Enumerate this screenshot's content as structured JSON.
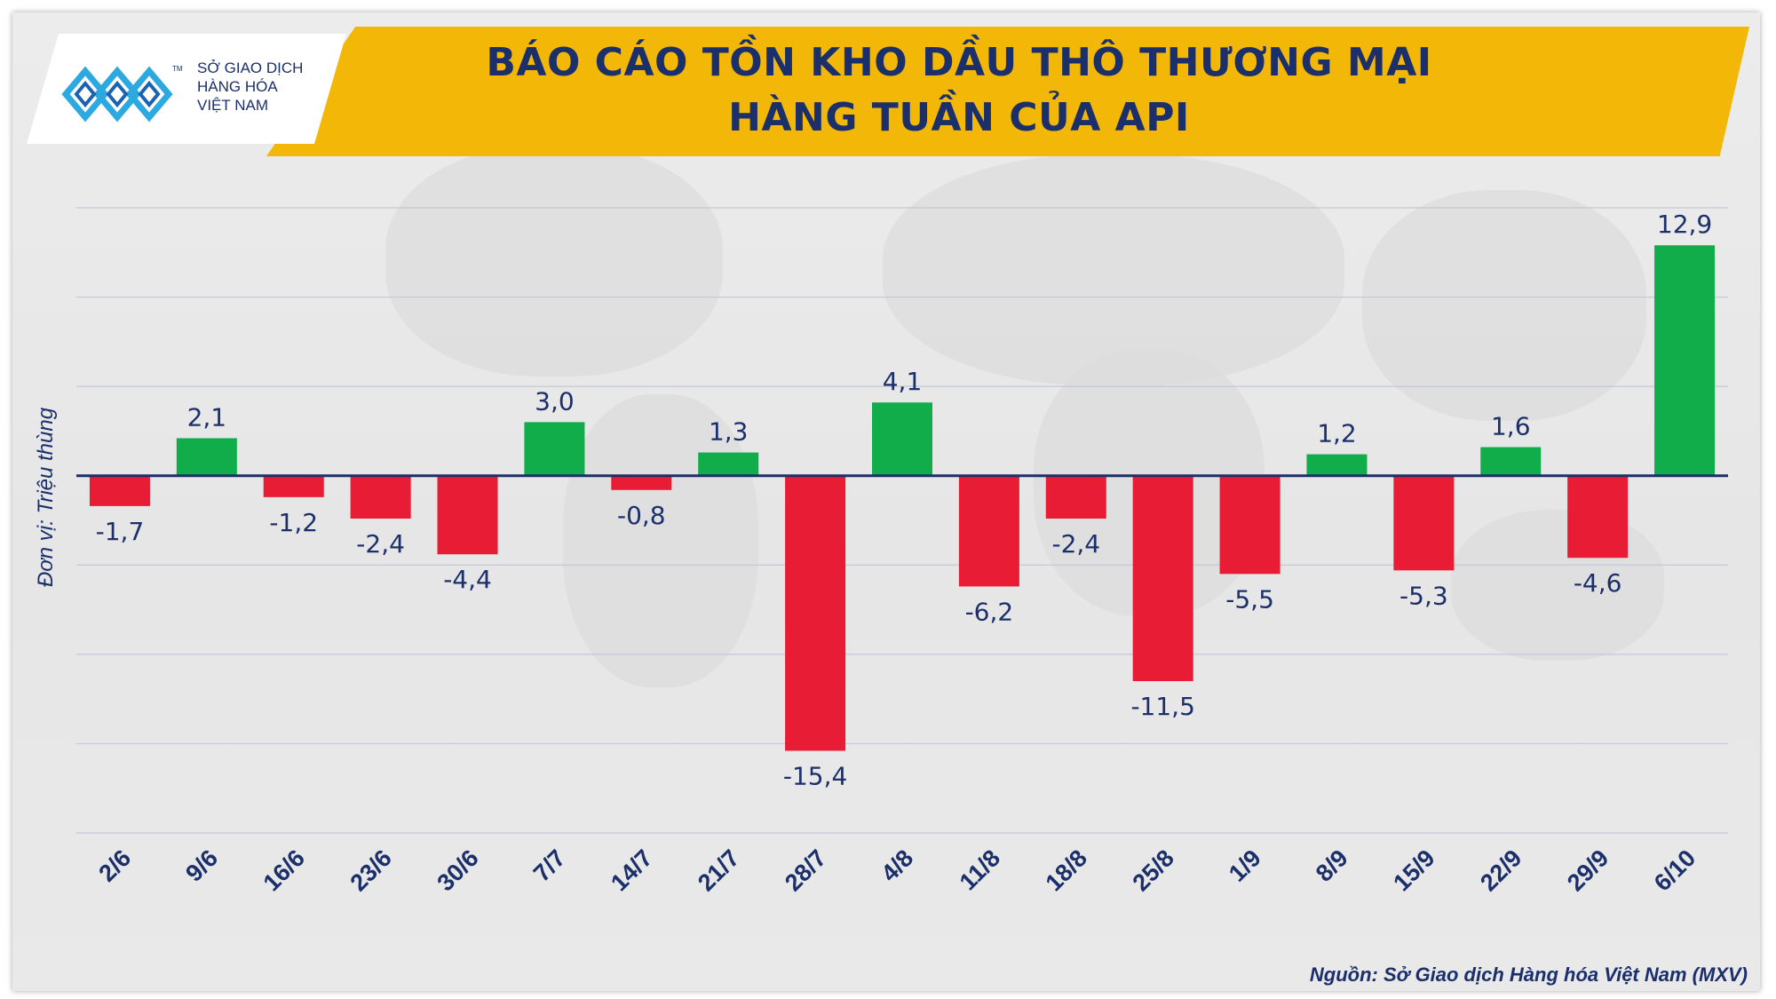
{
  "title": {
    "line1": "BÁO CÁO TỒN KHO DẦU THÔ THƯƠNG MẠI",
    "line2": "HÀNG TUẦN CỦA API"
  },
  "logo": {
    "line1": "SỞ GIAO DỊCH",
    "line2": "HÀNG HÓA",
    "line3": "VIỆT NAM",
    "tm": "TM"
  },
  "unit_label": "Đơn vị: Triệu thùng",
  "source": "Nguồn: Sở Giao dịch Hàng hóa Việt Nam (MXV)",
  "colors": {
    "positive": "#12ad4b",
    "negative": "#e81c34",
    "text": "#1b2f6b",
    "banner": "#f2b707"
  },
  "chart_data": {
    "type": "bar",
    "categories": [
      "2/6",
      "9/6",
      "16/6",
      "23/6",
      "30/6",
      "7/7",
      "14/7",
      "21/7",
      "28/7",
      "4/8",
      "11/8",
      "18/8",
      "25/8",
      "1/9",
      "8/9",
      "15/9",
      "22/9",
      "29/9",
      "6/10"
    ],
    "values": [
      -1.7,
      2.1,
      -1.2,
      -2.4,
      -4.4,
      3.0,
      -0.8,
      1.3,
      -15.4,
      4.1,
      -6.2,
      -2.4,
      -11.5,
      -5.5,
      1.2,
      -5.3,
      1.6,
      -4.6,
      12.9
    ],
    "value_labels": [
      "-1,7",
      "2,1",
      "-1,2",
      "-2,4",
      "-4,4",
      "3,0",
      "-0,8",
      "1,3",
      "-15,4",
      "4,1",
      "-6,2",
      "-2,4",
      "-11,5",
      "-5,5",
      "1,2",
      "-5,3",
      "1,6",
      "-4,6",
      "12,9"
    ],
    "ylim": [
      -20,
      15
    ],
    "y_gridlines": [
      -20,
      -15,
      -10,
      -5,
      0,
      5,
      10,
      15
    ],
    "grid": true,
    "xlabel": "",
    "ylabel": "Đơn vị: Triệu thùng"
  }
}
